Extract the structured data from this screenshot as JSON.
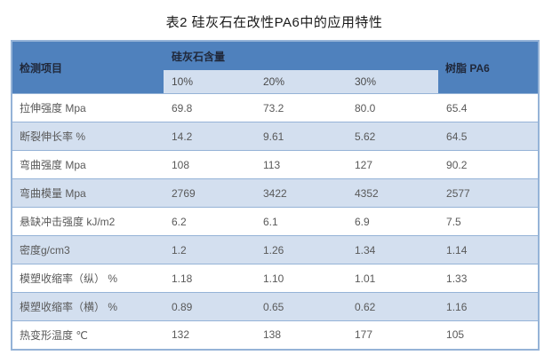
{
  "title": "表2 硅灰石在改性PA6中的应用特性",
  "table": {
    "header": {
      "item_col": "检测项目",
      "group_col": "硅灰石含量",
      "resin_col": "树脂 PA6",
      "subcols": [
        "10%",
        "20%",
        "30%"
      ]
    },
    "rows": [
      {
        "label": "拉伸强度 Mpa",
        "values": [
          "69.8",
          "73.2",
          "80.0",
          "65.4"
        ]
      },
      {
        "label": "断裂伸长率 %",
        "values": [
          "14.2",
          "9.61",
          "5.62",
          "64.5"
        ]
      },
      {
        "label": "弯曲强度 Mpa",
        "values": [
          "108",
          "113",
          "127",
          "90.2"
        ]
      },
      {
        "label": "弯曲模量 Mpa",
        "values": [
          "2769",
          "3422",
          "4352",
          "2577"
        ]
      },
      {
        "label": "悬缺冲击强度 kJ/m2",
        "values": [
          "6.2",
          "6.1",
          "6.9",
          "7.5"
        ]
      },
      {
        "label": "密度g/cm3",
        "values": [
          "1.2",
          "1.26",
          "1.34",
          "1.14"
        ]
      },
      {
        "label": "模塑收缩率（纵） %",
        "values": [
          "1.18",
          "1.10",
          "1.01",
          "1.33"
        ]
      },
      {
        "label": "模塑收缩率（横） %",
        "values": [
          "0.89",
          "0.65",
          "0.62",
          "1.16"
        ]
      },
      {
        "label": "热变形温度 ℃",
        "values": [
          "132",
          "138",
          "177",
          "105"
        ]
      }
    ],
    "colors": {
      "header_bg": "#4f81bd",
      "subheader_bg": "#d3dfef",
      "alt_row_bg": "#d3dfef",
      "border": "#95b3d7",
      "body_text": "#595959",
      "title_text": "#1a1a1a"
    }
  }
}
